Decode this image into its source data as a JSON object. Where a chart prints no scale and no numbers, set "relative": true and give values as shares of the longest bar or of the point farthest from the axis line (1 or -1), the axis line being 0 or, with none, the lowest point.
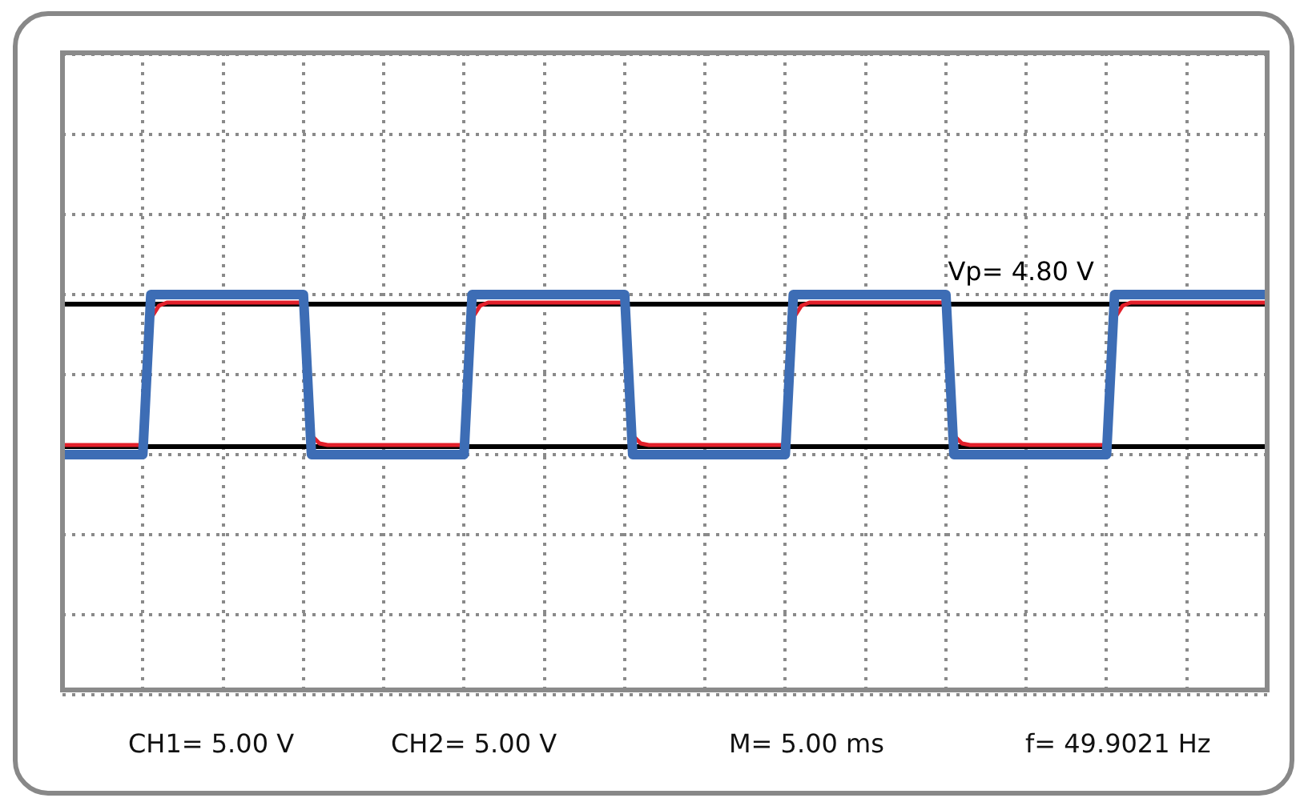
{
  "chart_data": {
    "type": "line",
    "relative": true,
    "grid": true,
    "legend": false,
    "marker": "none",
    "line_style": "solid",
    "categories": [
      null,
      null,
      null,
      null,
      null,
      null,
      null,
      null,
      null,
      null,
      null,
      null,
      null,
      null,
      null,
      null,
      null,
      null,
      null,
      null,
      null,
      null,
      null,
      null,
      null,
      null,
      null,
      null,
      null,
      null,
      null,
      null,
      null,
      null,
      null,
      null,
      null,
      null,
      null,
      null,
      null,
      null,
      null,
      null,
      null,
      null,
      null,
      null,
      null,
      null,
      null,
      null,
      null,
      null,
      null,
      null,
      null,
      null,
      null,
      null,
      null,
      null,
      null,
      null,
      null,
      null,
      null,
      null,
      null,
      null,
      null,
      null,
      null,
      null,
      null,
      null,
      null,
      null,
      null,
      null,
      null,
      null,
      null,
      null,
      null,
      null,
      null,
      null,
      null,
      null,
      null,
      null,
      null,
      null,
      null,
      null,
      null,
      null,
      null,
      null,
      null,
      null,
      null,
      null,
      null,
      null,
      null,
      null,
      null,
      null,
      null,
      null,
      null,
      null,
      null,
      null,
      null,
      null,
      null,
      null,
      null,
      null,
      null,
      null,
      null,
      null,
      null,
      null,
      null,
      null,
      null,
      null,
      null,
      null,
      null,
      null,
      null,
      null,
      null,
      null,
      null,
      null,
      null,
      null,
      null,
      null,
      null,
      null,
      null,
      null,
      null
    ],
    "series": [
      {
        "color": "#3d6db5",
        "values": [
          0,
          0,
          0,
          0,
          0,
          0,
          0,
          0,
          0,
          0,
          0,
          1,
          1,
          1,
          1,
          1,
          1,
          1,
          1,
          1,
          1,
          1,
          1,
          1,
          1,
          1,
          1,
          1,
          1,
          1,
          1,
          0,
          0,
          0,
          0,
          0,
          0,
          0,
          0,
          0,
          0,
          0,
          0,
          0,
          0,
          0,
          0,
          0,
          0,
          0,
          0,
          1,
          1,
          1,
          1,
          1,
          1,
          1,
          1,
          1,
          1,
          1,
          1,
          1,
          1,
          1,
          1,
          1,
          1,
          1,
          1,
          0,
          0,
          0,
          0,
          0,
          0,
          0,
          0,
          0,
          0,
          0,
          0,
          0,
          0,
          0,
          0,
          0,
          0,
          0,
          0,
          1,
          1,
          1,
          1,
          1,
          1,
          1,
          1,
          1,
          1,
          1,
          1,
          1,
          1,
          1,
          1,
          1,
          1,
          1,
          1,
          0,
          0,
          0,
          0,
          0,
          0,
          0,
          0,
          0,
          0,
          0,
          0,
          0,
          0,
          0,
          0,
          0,
          0,
          0,
          0,
          1,
          1,
          1,
          1,
          1,
          1,
          1,
          1,
          1,
          1,
          1,
          1,
          1,
          1,
          1,
          1,
          1,
          1,
          1,
          1
        ]
      },
      {
        "color": "#e3202b",
        "values": [
          0.06,
          0.06,
          0.06,
          0.06,
          0.06,
          0.06,
          0.06,
          0.06,
          0.06,
          0.06,
          0.06,
          0.85,
          0.93,
          0.95,
          0.95,
          0.95,
          0.95,
          0.95,
          0.95,
          0.95,
          0.95,
          0.95,
          0.95,
          0.95,
          0.95,
          0.95,
          0.95,
          0.95,
          0.95,
          0.95,
          0.95,
          0.12,
          0.07,
          0.06,
          0.06,
          0.06,
          0.06,
          0.06,
          0.06,
          0.06,
          0.06,
          0.06,
          0.06,
          0.06,
          0.06,
          0.06,
          0.06,
          0.06,
          0.06,
          0.06,
          0.06,
          0.85,
          0.93,
          0.95,
          0.95,
          0.95,
          0.95,
          0.95,
          0.95,
          0.95,
          0.95,
          0.95,
          0.95,
          0.95,
          0.95,
          0.95,
          0.95,
          0.95,
          0.95,
          0.95,
          0.95,
          0.12,
          0.07,
          0.06,
          0.06,
          0.06,
          0.06,
          0.06,
          0.06,
          0.06,
          0.06,
          0.06,
          0.06,
          0.06,
          0.06,
          0.06,
          0.06,
          0.06,
          0.06,
          0.06,
          0.06,
          0.85,
          0.93,
          0.95,
          0.95,
          0.95,
          0.95,
          0.95,
          0.95,
          0.95,
          0.95,
          0.95,
          0.95,
          0.95,
          0.95,
          0.95,
          0.95,
          0.95,
          0.95,
          0.95,
          0.95,
          0.12,
          0.07,
          0.06,
          0.06,
          0.06,
          0.06,
          0.06,
          0.06,
          0.06,
          0.06,
          0.06,
          0.06,
          0.06,
          0.06,
          0.06,
          0.06,
          0.06,
          0.06,
          0.06,
          0.06,
          0.85,
          0.93,
          0.95,
          0.95,
          0.95,
          0.95,
          0.95,
          0.95,
          0.95,
          0.95,
          0.95,
          0.95,
          0.95,
          0.95,
          0.95,
          0.95,
          0.95,
          0.95,
          0.95,
          0.95
        ]
      }
    ],
    "ref_lines": [
      {
        "axis": "y",
        "value": 0.94,
        "color": "#000000"
      },
      {
        "axis": "y",
        "value": 0.05,
        "color": "#000000"
      }
    ],
    "annotations": [
      {
        "text": "Vp= 4.80 V",
        "y": 0.95
      },
      "CH1= 5.00 V",
      "CH2= 5.00 V",
      "M= 5.00 ms",
      "f= 49.9021 Hz"
    ]
  }
}
